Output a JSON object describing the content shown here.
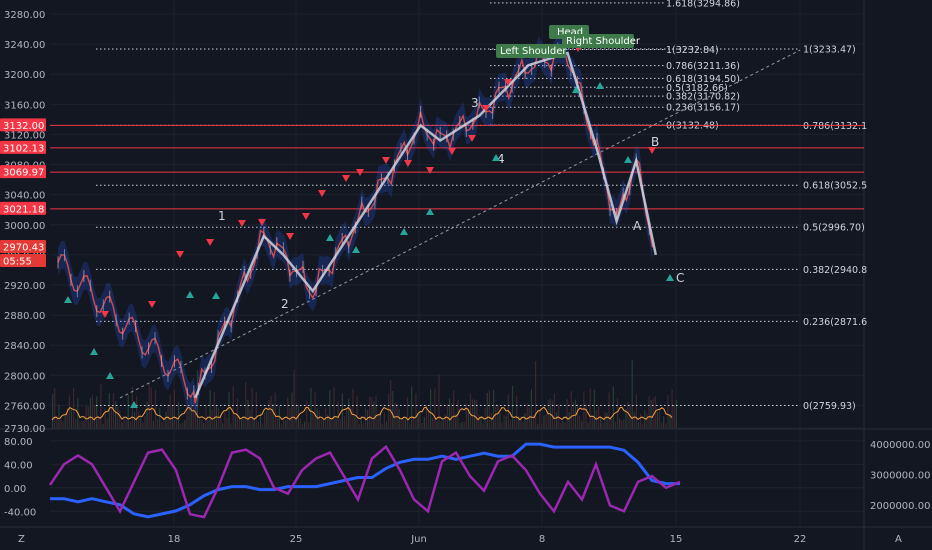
{
  "chart_data": {
    "type": "line",
    "title": "",
    "price_axis": {
      "ticks": [
        "3280.00",
        "3240.00",
        "3200.00",
        "3160.00",
        "3120.00",
        "3080.00",
        "3040.00",
        "3000.00",
        "2960.00",
        "2920.00",
        "2880.00",
        "2840.00",
        "2800.00",
        "2760.00",
        "2730.00"
      ],
      "range": [
        2730,
        3290
      ]
    },
    "x_axis": {
      "ticks": [
        "18",
        "25",
        "Jun",
        "8",
        "15",
        "22"
      ]
    },
    "indicator_left_axis": {
      "ticks": [
        "80.00",
        "40.00",
        "0.00",
        "-40.00"
      ],
      "range": [
        -60,
        90
      ]
    },
    "indicator_right_axis": {
      "ticks": [
        "4000000.00",
        "3000000.00",
        "2000000.00"
      ],
      "range": [
        1400000,
        4300000
      ]
    },
    "horizontal_levels": [
      3132.0,
      3102.13,
      3069.97,
      3021.18
    ],
    "level_tags": [
      "3132.00",
      "3102.13",
      "3069.97",
      "3021.18",
      "2970.43",
      "05:55"
    ],
    "elliott_wave": {
      "labels": [
        "1",
        "2",
        "3",
        "4",
        "A",
        "B",
        "C"
      ],
      "points": [
        [
          14,
          2770
        ],
        [
          21,
          2985
        ],
        [
          23,
          2960
        ],
        [
          26,
          2912
        ],
        [
          37,
          3132
        ],
        [
          39,
          3112
        ],
        [
          43,
          3145
        ],
        [
          48,
          3212
        ],
        [
          52,
          3228
        ],
        [
          55,
          3100
        ],
        [
          57,
          3005
        ],
        [
          59,
          3085
        ],
        [
          61,
          2960
        ]
      ]
    },
    "fib_left": [
      {
        "label": "1.618(3294.86)",
        "value": 3294.86
      },
      {
        "label": "1(3232.84)",
        "value": 3232.84
      },
      {
        "label": "0.786(3211.36)",
        "value": 3211.36
      },
      {
        "label": "0.618(3194.50)",
        "value": 3194.5
      },
      {
        "label": "0.5(3182.66)",
        "value": 3182.66
      },
      {
        "label": "0.382(3170.82)",
        "value": 3170.82
      },
      {
        "label": "0.236(3156.17)",
        "value": 3156.17
      },
      {
        "label": "0(3132.48)",
        "value": 3132.48
      }
    ],
    "fib_right": [
      {
        "label": "1(3233.47)",
        "value": 3233.47
      },
      {
        "label": "0.786(3132.1",
        "value": 3132.1
      },
      {
        "label": "0.618(3052.5",
        "value": 3052.5
      },
      {
        "label": "0.5(2996.70)",
        "value": 2996.7
      },
      {
        "label": "0.382(2940.8",
        "value": 2940.8
      },
      {
        "label": "0.236(2871.6",
        "value": 2871.6
      },
      {
        "label": "0(2759.93)",
        "value": 2759.93
      }
    ],
    "patterns": [
      "Head",
      "Left Shoulder",
      "Right Shoulder"
    ],
    "current_price": 2970.43,
    "blue_series_millions": [
      2.2,
      2.2,
      2.1,
      2.2,
      2.1,
      2.0,
      1.7,
      1.6,
      1.7,
      1.8,
      2.0,
      2.3,
      2.5,
      2.6,
      2.6,
      2.5,
      2.5,
      2.6,
      2.6,
      2.6,
      2.7,
      2.8,
      2.9,
      2.9,
      3.2,
      3.4,
      3.5,
      3.5,
      3.6,
      3.5,
      3.6,
      3.7,
      3.6,
      3.6,
      4.0,
      4.0,
      3.9,
      3.9,
      3.9,
      3.9,
      3.9,
      3.8,
      3.4,
      2.8,
      2.7,
      2.7
    ],
    "purple_series": [
      5,
      40,
      55,
      40,
      0,
      -40,
      10,
      60,
      65,
      30,
      -45,
      -50,
      0,
      60,
      65,
      50,
      0,
      -10,
      30,
      50,
      60,
      20,
      -20,
      50,
      70,
      30,
      -20,
      -40,
      45,
      60,
      20,
      -5,
      45,
      55,
      30,
      -10,
      -40,
      10,
      -20,
      40,
      -30,
      -40,
      10,
      20,
      0,
      10
    ]
  },
  "colors": {
    "background": "#131722",
    "grid": "#1e222d",
    "level_red": "#f23645",
    "wave_white": "#d1d4dc",
    "blue_line": "#2962ff",
    "purple_line": "#9c27b0",
    "fib_green": "#3e7a4a",
    "orange_osc": "#f7a13d"
  },
  "footer": {
    "left_icon": "tradingview-icon",
    "right_letter": "A"
  }
}
